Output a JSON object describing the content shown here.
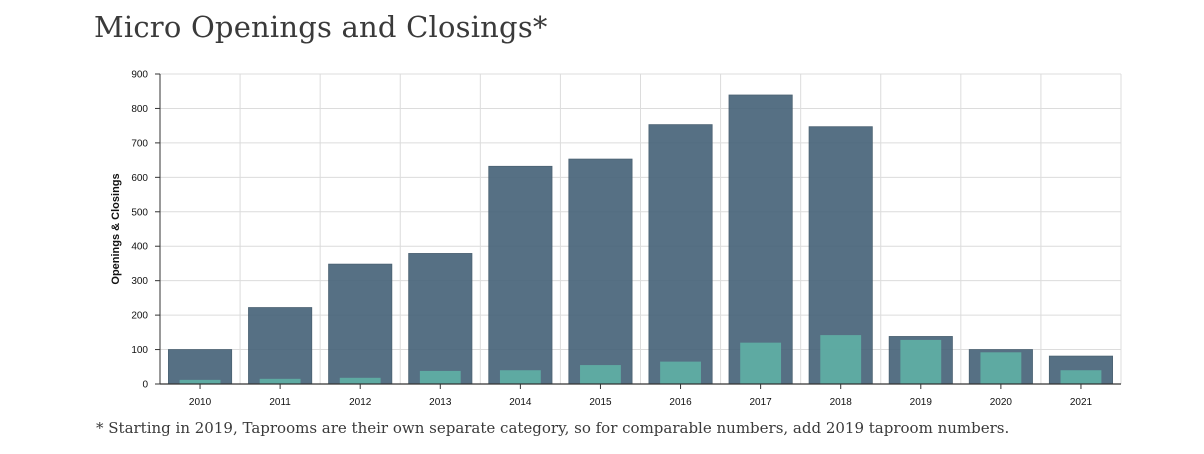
{
  "title": "Micro Openings and Closings*",
  "footnote": "* Starting in 2019, Taprooms are their own separate category, so for comparable numbers, add 2019 taproom numbers.",
  "colors": {
    "openings": "#48647a",
    "closings": "#5fada3",
    "grid": "#dcdcdc",
    "axis": "#333333"
  },
  "chart_data": {
    "type": "bar",
    "categories": [
      "2010",
      "2011",
      "2012",
      "2013",
      "2014",
      "2015",
      "2016",
      "2017",
      "2018",
      "2019",
      "2020",
      "2021"
    ],
    "series": [
      {
        "values": [
          100,
          222,
          348,
          379,
          632,
          653,
          753,
          839,
          747,
          138,
          100,
          81
        ]
      },
      {
        "values": [
          12,
          15,
          18,
          38,
          40,
          55,
          65,
          120,
          142,
          128,
          92,
          40
        ]
      }
    ],
    "title": "Micro Openings and Closings*",
    "xlabel": "",
    "ylabel": "Openings & Closings",
    "ylim": [
      0,
      900
    ],
    "yticks": [
      "0",
      "100",
      "200",
      "300",
      "400",
      "500",
      "600",
      "700",
      "800",
      "900"
    ],
    "grid": true
  }
}
